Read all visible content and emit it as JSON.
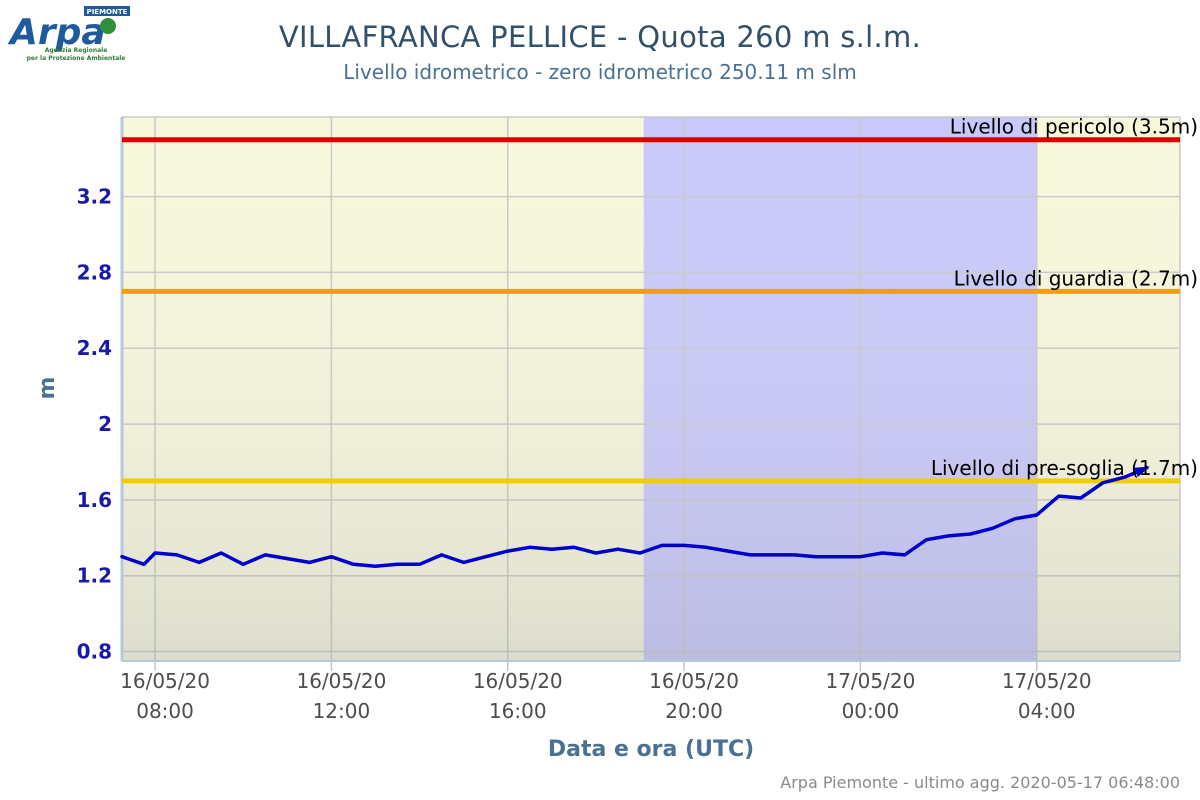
{
  "header": {
    "logo_main": "Arpa",
    "logo_region": "PIEMONTE",
    "logo_line1": "Agenzia Regionale",
    "logo_line2": "per la Protezione Ambientale",
    "title": "VILLAFRANCA PELLICE - Quota 260 m s.l.m.",
    "subtitle": "Livello idrometrico - zero idrometrico 250.11 m slm"
  },
  "footer": {
    "text": "Arpa Piemonte - ultimo agg. 2020-05-17 06:48:00"
  },
  "chart_data": {
    "type": "line",
    "xlabel": "Data e ora (UTC)",
    "ylabel": "m",
    "ylim": [
      0.75,
      3.62
    ],
    "yticks": [
      "0.8",
      "1.2",
      "1.6",
      "2",
      "2.4",
      "2.8",
      "3.2"
    ],
    "xlim": [
      "2020-05-16T07:15",
      "2020-05-17T07:15"
    ],
    "xticks": [
      {
        "t": "2020-05-16T08:00",
        "date": "16/05/20",
        "time": "08:00"
      },
      {
        "t": "2020-05-16T12:00",
        "date": "16/05/20",
        "time": "12:00"
      },
      {
        "t": "2020-05-16T16:00",
        "date": "16/05/20",
        "time": "16:00"
      },
      {
        "t": "2020-05-16T20:00",
        "date": "16/05/20",
        "time": "20:00"
      },
      {
        "t": "2020-05-17T00:00",
        "date": "17/05/20",
        "time": "00:00"
      },
      {
        "t": "2020-05-17T04:00",
        "date": "17/05/20",
        "time": "04:00"
      }
    ],
    "bands": [
      {
        "from": "2020-05-16T07:15",
        "to": "2020-05-16T19:05",
        "color": "#f7f7dc"
      },
      {
        "from": "2020-05-16T19:05",
        "to": "2020-05-17T04:00",
        "color": "#c8c8fa"
      },
      {
        "from": "2020-05-17T04:00",
        "to": "2020-05-17T07:15",
        "color": "#f7f7dc"
      }
    ],
    "thresholds": [
      {
        "label": "Livello di pericolo (3.5m)",
        "value": 3.5,
        "color": "#dd0000"
      },
      {
        "label": "Livello di guardia (2.7m)",
        "value": 2.7,
        "color": "#f0a000"
      },
      {
        "label": "Livello di pre-soglia (1.7m)",
        "value": 1.7,
        "color": "#f2cc00"
      }
    ],
    "series": [
      {
        "color": "#0000cc",
        "x": [
          "2020-05-16T07:15",
          "2020-05-16T07:45",
          "2020-05-16T08:00",
          "2020-05-16T08:30",
          "2020-05-16T09:00",
          "2020-05-16T09:30",
          "2020-05-16T10:00",
          "2020-05-16T10:30",
          "2020-05-16T11:00",
          "2020-05-16T11:30",
          "2020-05-16T12:00",
          "2020-05-16T12:30",
          "2020-05-16T13:00",
          "2020-05-16T13:30",
          "2020-05-16T14:00",
          "2020-05-16T14:30",
          "2020-05-16T15:00",
          "2020-05-16T15:30",
          "2020-05-16T16:00",
          "2020-05-16T16:30",
          "2020-05-16T17:00",
          "2020-05-16T17:30",
          "2020-05-16T18:00",
          "2020-05-16T18:30",
          "2020-05-16T19:00",
          "2020-05-16T19:30",
          "2020-05-16T20:00",
          "2020-05-16T20:30",
          "2020-05-16T21:00",
          "2020-05-16T21:30",
          "2020-05-16T22:00",
          "2020-05-16T22:30",
          "2020-05-16T23:00",
          "2020-05-16T23:30",
          "2020-05-17T00:00",
          "2020-05-17T00:30",
          "2020-05-17T01:00",
          "2020-05-17T01:30",
          "2020-05-17T02:00",
          "2020-05-17T02:30",
          "2020-05-17T03:00",
          "2020-05-17T03:30",
          "2020-05-17T04:00",
          "2020-05-17T04:30",
          "2020-05-17T05:00",
          "2020-05-17T05:30",
          "2020-05-17T06:00",
          "2020-05-17T06:30"
        ],
        "values": [
          1.3,
          1.26,
          1.32,
          1.31,
          1.27,
          1.32,
          1.26,
          1.31,
          1.29,
          1.27,
          1.3,
          1.26,
          1.25,
          1.26,
          1.26,
          1.31,
          1.27,
          1.3,
          1.33,
          1.35,
          1.34,
          1.35,
          1.32,
          1.34,
          1.32,
          1.36,
          1.36,
          1.35,
          1.33,
          1.31,
          1.31,
          1.31,
          1.3,
          1.3,
          1.3,
          1.32,
          1.31,
          1.39,
          1.41,
          1.42,
          1.45,
          1.5,
          1.52,
          1.62,
          1.61,
          1.69,
          1.72,
          1.77
        ]
      }
    ]
  }
}
